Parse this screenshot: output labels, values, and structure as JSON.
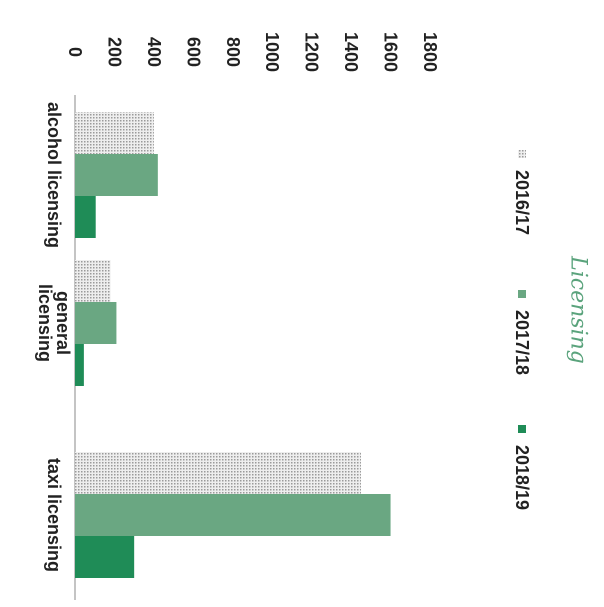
{
  "chart_data": {
    "type": "bar",
    "title": "Licensing",
    "orientation": "rotated",
    "categories": [
      "alcohol licensing",
      "general\nlicensing",
      "taxi licensing"
    ],
    "series": [
      {
        "name": "2016/17",
        "values": [
          400,
          180,
          1450
        ],
        "color": "#d9d9d9",
        "pattern": "dotted"
      },
      {
        "name": "2017/18",
        "values": [
          420,
          210,
          1600
        ],
        "color": "#6aa782"
      },
      {
        "name": "2018/19",
        "values": [
          105,
          45,
          300
        ],
        "color": "#1f8c57"
      }
    ],
    "ylim": [
      0,
      1800
    ],
    "yticks": [
      0,
      200,
      400,
      600,
      800,
      1000,
      1200,
      1400,
      1600,
      1800
    ],
    "legend_position": "top",
    "grid": false
  }
}
